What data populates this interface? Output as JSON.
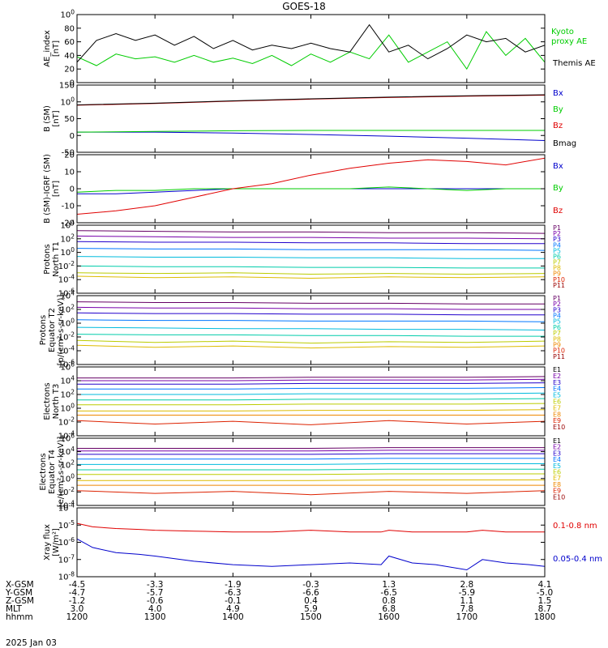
{
  "title": "GOES-18",
  "date": "2025 Jan 03",
  "orbit": {
    "row_labels": [
      "X-GSM",
      "Y-GSM",
      "Z-GSM",
      "MLT",
      "hhmm"
    ],
    "columns": [
      {
        "values": [
          "-4.5",
          "-4.7",
          "-1.2",
          "3.0",
          "1200"
        ]
      },
      {
        "values": [
          "-3.3",
          "-5.7",
          "-0.6",
          "4.0",
          "1300"
        ]
      },
      {
        "values": [
          "-1.9",
          "-6.3",
          "-0.1",
          "4.9",
          "1400"
        ]
      },
      {
        "values": [
          "-0.3",
          "-6.6",
          "0.4",
          "5.9",
          "1500"
        ]
      },
      {
        "values": [
          "1.3",
          "-6.5",
          "0.8",
          "6.8",
          "1600"
        ]
      },
      {
        "values": [
          "2.8",
          "-5.9",
          "1.1",
          "7.8",
          "1700"
        ]
      },
      {
        "values": [
          "4.1",
          "-5.0",
          "1.5",
          "8.7",
          "1800"
        ]
      }
    ]
  },
  "colors": {
    "axis": "#000000",
    "black": "#000000",
    "red": "#e00000",
    "green": "#00cc00",
    "blue": "#0000cc",
    "darkred": "#990000",
    "navy": "#000066",
    "P1": "#660066",
    "P2": "#7700aa",
    "P3": "#2200cc",
    "P4": "#0077ff",
    "P5": "#00bbdd",
    "P6": "#00ccaa",
    "P7": "#bbcc00",
    "P8": "#ddbb00",
    "P9": "#ee8800",
    "P10": "#dd2200",
    "P11": "#990000"
  },
  "chart_data": [
    {
      "type": "line",
      "id": "ae",
      "ylabel": [
        "AE_index",
        "[nT]"
      ],
      "ylim": [
        0,
        100
      ],
      "yticks": [
        "0",
        "20",
        "40",
        "60",
        "80",
        "100"
      ],
      "x": [
        12.0,
        12.25,
        12.5,
        12.75,
        13.0,
        13.25,
        13.5,
        13.75,
        14.0,
        14.25,
        14.5,
        14.75,
        15.0,
        15.25,
        15.5,
        15.75,
        16.0,
        16.25,
        16.5,
        16.75,
        17.0,
        17.25,
        17.5,
        17.75,
        18.0
      ],
      "series": [
        {
          "name": "Kyoto proxy AE",
          "color": "#00cc00",
          "values": [
            38,
            25,
            42,
            35,
            38,
            30,
            40,
            30,
            36,
            28,
            40,
            25,
            42,
            30,
            45,
            35,
            70,
            30,
            45,
            60,
            20,
            75,
            40,
            65,
            30
          ]
        },
        {
          "name": "Themis AE",
          "color": "#000000",
          "values": [
            30,
            62,
            72,
            62,
            70,
            55,
            68,
            50,
            62,
            48,
            55,
            50,
            58,
            50,
            45,
            85,
            45,
            55,
            35,
            50,
            70,
            60,
            65,
            45,
            55
          ]
        }
      ]
    },
    {
      "type": "line",
      "id": "bsm",
      "ylabel": [
        "B (SM)",
        "[nT]"
      ],
      "ylim": [
        -50,
        150
      ],
      "yticks": [
        "-50",
        "0",
        "50",
        "100",
        "150"
      ],
      "x": [
        12.0,
        13.0,
        14.0,
        15.0,
        16.0,
        17.0,
        18.0
      ],
      "series": [
        {
          "name": "Bx",
          "color": "#0000cc",
          "values": [
            10,
            10,
            7,
            3,
            -2,
            -8,
            -15
          ]
        },
        {
          "name": "By",
          "color": "#00cc00",
          "values": [
            10,
            12,
            14,
            15,
            15,
            15,
            15
          ]
        },
        {
          "name": "Bz",
          "color": "#e00000",
          "values": [
            90,
            95,
            102,
            108,
            113,
            117,
            120
          ]
        },
        {
          "name": "Bmag",
          "color": "#000000",
          "values": [
            91,
            96,
            103,
            109,
            114,
            118,
            121
          ]
        }
      ]
    },
    {
      "type": "line",
      "id": "bigrf",
      "ylabel": [
        "B (SM)-IGRF (SM)",
        "[nT]"
      ],
      "ylim": [
        -20,
        20
      ],
      "yticks": [
        "-20",
        "-10",
        "0",
        "10",
        "20"
      ],
      "x": [
        12.0,
        12.5,
        13.0,
        13.5,
        14.0,
        14.5,
        15.0,
        15.5,
        16.0,
        16.5,
        17.0,
        17.5,
        18.0
      ],
      "series": [
        {
          "name": "Bx",
          "color": "#0000cc",
          "values": [
            -3,
            -3,
            -2,
            -1,
            0,
            0,
            0,
            0,
            0,
            0,
            0,
            0,
            0
          ]
        },
        {
          "name": "By",
          "color": "#00cc00",
          "values": [
            -2,
            -1,
            -1,
            0,
            0,
            0,
            0,
            0,
            1,
            0,
            -1,
            0,
            0
          ]
        },
        {
          "name": "Bz",
          "color": "#e00000",
          "values": [
            -15,
            -13,
            -10,
            -5,
            0,
            3,
            8,
            12,
            15,
            17,
            16,
            14,
            18
          ]
        }
      ]
    },
    {
      "type": "line",
      "id": "protons-north",
      "scale": "log",
      "ylabel": [
        "Protons",
        "North T1"
      ],
      "ylim": [
        -6,
        4
      ],
      "yticks": [
        "10-6",
        "10-4",
        "10-2",
        "10^0",
        "10^2",
        "10^4"
      ],
      "x": [
        12.0,
        13.0,
        14.0,
        15.0,
        16.0,
        17.0,
        18.0
      ],
      "series": [
        {
          "name": "P1",
          "values": [
            3.2,
            3.1,
            3.0,
            3.0,
            2.9,
            2.9,
            2.8
          ]
        },
        {
          "name": "P2",
          "values": [
            2.4,
            2.3,
            2.2,
            2.2,
            2.1,
            2.1,
            2.0
          ]
        },
        {
          "name": "P3",
          "values": [
            1.6,
            1.5,
            1.5,
            1.4,
            1.4,
            1.3,
            1.3
          ]
        },
        {
          "name": "P4",
          "values": [
            0.6,
            0.5,
            0.5,
            0.4,
            0.4,
            0.4,
            0.3
          ]
        },
        {
          "name": "P5",
          "values": [
            -0.6,
            -0.7,
            -0.7,
            -0.8,
            -0.8,
            -0.9,
            -0.9
          ]
        },
        {
          "name": "P6",
          "values": [
            -2.0,
            -2.1,
            -2.1,
            -2.2,
            -2.2,
            -2.3,
            -2.3
          ]
        },
        {
          "name": "P7",
          "values": [
            -3.0,
            -3.1,
            -3.0,
            -3.2,
            -3.1,
            -3.2,
            -3.1
          ]
        },
        {
          "name": "P8",
          "values": [
            -3.5,
            -3.7,
            -3.6,
            -3.8,
            -3.6,
            -3.7,
            -3.6
          ]
        }
      ],
      "labels": [
        "P1",
        "P2",
        "P3",
        "P4",
        "P5",
        "P6",
        "P7",
        "P8",
        "P9",
        "P10",
        "P11"
      ]
    },
    {
      "type": "line",
      "id": "protons-equator",
      "scale": "log",
      "ylabel": [
        "Protons",
        "Equator T2",
        "[p/(cm²-s-sr-keV)]"
      ],
      "ylim": [
        -6,
        4
      ],
      "yticks": [
        "10-6",
        "10-4",
        "10-2",
        "10^0",
        "10^2",
        "10^4"
      ],
      "x": [
        12.0,
        13.0,
        14.0,
        15.0,
        16.0,
        17.0,
        18.0
      ],
      "series": [
        {
          "name": "P1",
          "values": [
            3.1,
            3.0,
            3.0,
            2.9,
            2.9,
            2.8,
            2.8
          ]
        },
        {
          "name": "P2",
          "values": [
            2.3,
            2.2,
            2.2,
            2.1,
            2.1,
            2.0,
            2.0
          ]
        },
        {
          "name": "P3",
          "values": [
            1.5,
            1.4,
            1.4,
            1.3,
            1.3,
            1.2,
            1.2
          ]
        },
        {
          "name": "P4",
          "values": [
            0.5,
            0.4,
            0.4,
            0.3,
            0.3,
            0.3,
            0.2
          ]
        },
        {
          "name": "P5",
          "values": [
            -0.6,
            -0.7,
            -0.8,
            -0.8,
            -0.9,
            -0.9,
            -1.0
          ]
        },
        {
          "name": "P6",
          "values": [
            -1.6,
            -1.7,
            -1.7,
            -1.8,
            -1.8,
            -1.9,
            -1.9
          ]
        },
        {
          "name": "P7",
          "values": [
            -2.5,
            -2.8,
            -2.6,
            -2.9,
            -2.7,
            -2.8,
            -2.6
          ]
        },
        {
          "name": "P8",
          "values": [
            -3.2,
            -3.5,
            -3.3,
            -3.6,
            -3.4,
            -3.5,
            -3.3
          ]
        }
      ],
      "labels": [
        "P1",
        "P2",
        "P3",
        "P4",
        "P5",
        "P6",
        "P7",
        "P8",
        "P9",
        "P10",
        "P11"
      ]
    },
    {
      "type": "line",
      "id": "electrons-north",
      "scale": "log",
      "ylabel": [
        "Electrons",
        "North T3"
      ],
      "ylim": [
        -4,
        6
      ],
      "yticks": [
        "10-4",
        "10-2",
        "10^0",
        "10^2",
        "10^4",
        "10^6"
      ],
      "x": [
        12.0,
        13.0,
        14.0,
        15.0,
        16.0,
        17.0,
        18.0
      ],
      "series": [
        {
          "name": "E1",
          "values": [
            4.4,
            4.4,
            4.4,
            4.5,
            4.5,
            4.5,
            4.6
          ]
        },
        {
          "name": "E2",
          "values": [
            4.0,
            4.0,
            4.0,
            4.1,
            4.1,
            4.1,
            4.2
          ]
        },
        {
          "name": "E3",
          "values": [
            3.5,
            3.5,
            3.5,
            3.6,
            3.6,
            3.6,
            3.7
          ]
        },
        {
          "name": "E4",
          "values": [
            2.8,
            2.8,
            2.8,
            2.9,
            2.9,
            2.9,
            3.0
          ]
        },
        {
          "name": "E5",
          "values": [
            2.0,
            2.0,
            2.0,
            2.1,
            2.1,
            2.1,
            2.2
          ]
        },
        {
          "name": "E6",
          "values": [
            1.2,
            1.2,
            1.2,
            1.3,
            1.3,
            1.3,
            1.4
          ]
        },
        {
          "name": "E7",
          "values": [
            0.5,
            0.5,
            0.5,
            0.6,
            0.6,
            0.6,
            0.7
          ]
        },
        {
          "name": "E8",
          "values": [
            -0.4,
            -0.4,
            -0.4,
            -0.3,
            -0.3,
            -0.3,
            -0.2
          ]
        },
        {
          "name": "E9",
          "values": [
            -1.0,
            -1.0,
            -1.0,
            -1.0,
            -1.0,
            -1.0,
            -1.0
          ]
        },
        {
          "name": "E10",
          "values": [
            -1.8,
            -2.3,
            -1.9,
            -2.4,
            -1.8,
            -2.3,
            -1.9
          ]
        }
      ],
      "labels": [
        "E1",
        "E2",
        "E3",
        "E4",
        "E5",
        "E6",
        "E7",
        "E8",
        "E9",
        "E10"
      ]
    },
    {
      "type": "line",
      "id": "electrons-equator",
      "scale": "log",
      "ylabel": [
        "Electrons",
        "Equator T4",
        "[e/(cm²-s-sr-keV)]"
      ],
      "ylim": [
        -4,
        6
      ],
      "yticks": [
        "10-4",
        "10-2",
        "10^0",
        "10^2",
        "10^4",
        "10^6"
      ],
      "x": [
        12.0,
        13.0,
        14.0,
        15.0,
        16.0,
        17.0,
        18.0
      ],
      "series": [
        {
          "name": "E1",
          "values": [
            4.5,
            4.5,
            4.5,
            4.5,
            4.6,
            4.6,
            4.6
          ]
        },
        {
          "name": "E2",
          "values": [
            4.1,
            4.1,
            4.1,
            4.1,
            4.2,
            4.2,
            4.2
          ]
        },
        {
          "name": "E3",
          "values": [
            3.6,
            3.6,
            3.6,
            3.6,
            3.7,
            3.7,
            3.7
          ]
        },
        {
          "name": "E4",
          "values": [
            2.9,
            2.9,
            2.9,
            2.9,
            3.0,
            3.0,
            3.0
          ]
        },
        {
          "name": "E5",
          "values": [
            2.1,
            2.1,
            2.1,
            2.1,
            2.2,
            2.2,
            2.2
          ]
        },
        {
          "name": "E6",
          "values": [
            1.3,
            1.3,
            1.3,
            1.3,
            1.4,
            1.4,
            1.4
          ]
        },
        {
          "name": "E7",
          "values": [
            0.6,
            0.6,
            0.6,
            0.6,
            0.7,
            0.7,
            0.7
          ]
        },
        {
          "name": "E8",
          "values": [
            -0.3,
            -0.3,
            -0.3,
            -0.3,
            -0.2,
            -0.2,
            -0.2
          ]
        },
        {
          "name": "E9",
          "values": [
            -1.0,
            -1.0,
            -1.0,
            -1.0,
            -1.0,
            -1.0,
            -1.0
          ]
        },
        {
          "name": "E10",
          "values": [
            -1.8,
            -2.2,
            -1.9,
            -2.4,
            -1.9,
            -2.2,
            -1.8
          ]
        }
      ],
      "labels": [
        "E1",
        "E2",
        "E3",
        "E4",
        "E5",
        "E6",
        "E7",
        "E8",
        "E9",
        "E10"
      ]
    },
    {
      "type": "line",
      "id": "xray",
      "scale": "log",
      "ylabel": [
        "Xray flux",
        "[W/m²]"
      ],
      "ylim": [
        -8,
        -4
      ],
      "yticks": [
        "10-8",
        "10-7",
        "10-6",
        "10-5",
        "10-4"
      ],
      "x": [
        12.0,
        12.2,
        12.5,
        12.8,
        13.0,
        13.5,
        14.0,
        14.5,
        15.0,
        15.5,
        15.9,
        16.0,
        16.3,
        16.6,
        17.0,
        17.2,
        17.5,
        17.8,
        18.0
      ],
      "series": [
        {
          "name": "0.1-0.8 nm",
          "color": "#e00000",
          "values": [
            -4.9,
            -5.1,
            -5.2,
            -5.25,
            -5.3,
            -5.35,
            -5.4,
            -5.4,
            -5.3,
            -5.4,
            -5.4,
            -5.3,
            -5.4,
            -5.4,
            -5.4,
            -5.3,
            -5.4,
            -5.4,
            -5.4
          ]
        },
        {
          "name": "0.05-0.4 nm",
          "color": "#0000cc",
          "values": [
            -5.8,
            -6.3,
            -6.6,
            -6.7,
            -6.8,
            -7.1,
            -7.3,
            -7.4,
            -7.3,
            -7.2,
            -7.3,
            -6.8,
            -7.2,
            -7.3,
            -7.6,
            -7.0,
            -7.2,
            -7.3,
            -7.4
          ]
        }
      ]
    }
  ],
  "right_labels": {
    "ae": [
      "Kyoto",
      "proxy AE",
      "Themis AE"
    ],
    "bsm": [
      "Bx",
      "By",
      "Bz",
      "Bmag"
    ],
    "bigrf": [
      "Bx",
      "By",
      "Bz"
    ],
    "xray": [
      "0.1-0.8 nm",
      "0.05-0.4 nm"
    ]
  }
}
